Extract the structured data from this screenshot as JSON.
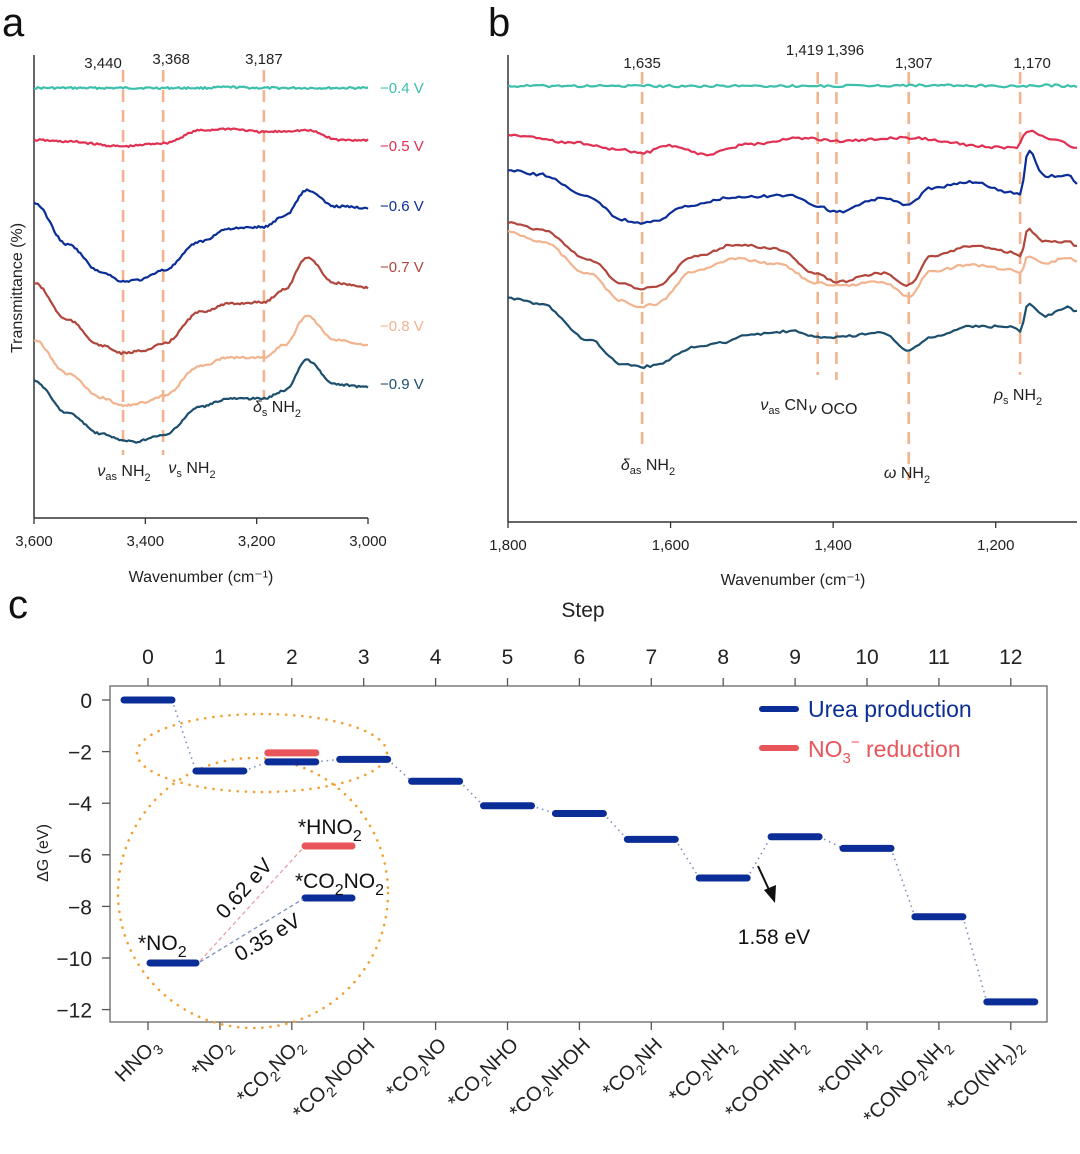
{
  "chart_data": [
    {
      "panel": "a",
      "type": "line",
      "title": "",
      "xlabel": "Wavenumber (cm⁻¹)",
      "ylabel": "Transmittance (%)",
      "xlim": [
        3600,
        3000
      ],
      "x_ticks": [
        "3,600",
        "3,400",
        "3,200",
        "3,000"
      ],
      "x_tick_values": [
        3600,
        3400,
        3200,
        3000
      ],
      "y_ticks": [],
      "grid": false,
      "reference_lines": [
        {
          "x": 3440,
          "label": "3,440"
        },
        {
          "x": 3368,
          "label": "3,368"
        },
        {
          "x": 3187,
          "label": "3,187"
        }
      ],
      "assignments": [
        {
          "x": 3440,
          "greek": "ν",
          "sub": "as",
          "group": "NH",
          "group_sub": "2"
        },
        {
          "x": 3368,
          "greek": "ν",
          "sub": "s",
          "group": "NH",
          "group_sub": "2"
        },
        {
          "x": 3187,
          "greek": "δ",
          "sub": "s",
          "group": "NH",
          "group_sub": "2"
        }
      ],
      "series": [
        {
          "name": "−0.4 V",
          "color": "#3dbfac",
          "x": [
            3600,
            3500,
            3440,
            3368,
            3300,
            3250,
            3187,
            3110,
            3050,
            3000
          ],
          "y": [
            0,
            0,
            0,
            0,
            0,
            0.05,
            0,
            0,
            0,
            0
          ]
        },
        {
          "name": "−0.5 V",
          "color": "#e03152",
          "x": [
            3600,
            3540,
            3440,
            3368,
            3300,
            3250,
            3187,
            3110,
            3050,
            3000
          ],
          "y": [
            0,
            -0.1,
            -0.4,
            -0.2,
            0.6,
            0.7,
            0.5,
            0.6,
            0.0,
            0.0
          ]
        },
        {
          "name": "−0.6 V",
          "color": "#0b2d97",
          "x": [
            3600,
            3540,
            3480,
            3440,
            3410,
            3368,
            3300,
            3250,
            3187,
            3150,
            3110,
            3060,
            3000
          ],
          "y": [
            0,
            -2.6,
            -4.3,
            -4.9,
            -4.8,
            -4.2,
            -2.4,
            -1.6,
            -1.5,
            -0.8,
            0.8,
            -0.2,
            -0.3
          ]
        },
        {
          "name": "−0.7 V",
          "color": "#b0463c",
          "x": [
            3600,
            3540,
            3480,
            3440,
            3400,
            3368,
            3300,
            3250,
            3187,
            3150,
            3110,
            3060,
            3000
          ],
          "y": [
            0,
            -2.3,
            -3.9,
            -4.4,
            -4.2,
            -3.8,
            -1.8,
            -1.3,
            -1.2,
            -0.4,
            1.6,
            0.0,
            -0.3
          ]
        },
        {
          "name": "−0.8 V",
          "color": "#f2b48e",
          "x": [
            3600,
            3540,
            3480,
            3440,
            3400,
            3368,
            3300,
            3250,
            3187,
            3150,
            3110,
            3060,
            3000
          ],
          "y": [
            0,
            -2.1,
            -3.6,
            -4.1,
            -3.9,
            -3.5,
            -1.6,
            -1.1,
            -1.1,
            -0.3,
            1.5,
            0.0,
            -0.3
          ]
        },
        {
          "name": "−0.9 V",
          "color": "#1c4f6d",
          "x": [
            3600,
            3540,
            3480,
            3440,
            3420,
            3368,
            3300,
            3250,
            3187,
            3150,
            3110,
            3060,
            3000
          ],
          "y": [
            0,
            -2.0,
            -3.3,
            -3.7,
            -3.8,
            -3.4,
            -1.6,
            -1.1,
            -1.1,
            -0.6,
            1.3,
            -0.2,
            -0.4
          ]
        }
      ]
    },
    {
      "panel": "b",
      "type": "line",
      "title": "",
      "xlabel": "Wavenumber (cm⁻¹)",
      "ylabel": "",
      "xlim": [
        1800,
        1100
      ],
      "x_ticks": [
        "1,800",
        "1,600",
        "1,400",
        "1,200"
      ],
      "x_tick_values": [
        1800,
        1600,
        1400,
        1200
      ],
      "grid": false,
      "reference_lines": [
        {
          "x": 1635,
          "label": "1,635"
        },
        {
          "x": 1419,
          "label": "1,419"
        },
        {
          "x": 1396,
          "label": "1,396"
        },
        {
          "x": 1307,
          "label": "1,307"
        },
        {
          "x": 1170,
          "label": "1,170"
        }
      ],
      "assignments": [
        {
          "x": 1635,
          "greek": "δ",
          "sub": "as",
          "group": "NH",
          "group_sub": "2"
        },
        {
          "x": 1419,
          "greek": "ν",
          "sub": "as",
          "group": "CN",
          "group_sub": ""
        },
        {
          "x": 1396,
          "greek": "ν",
          "sub": "",
          "group": "OCO",
          "group_sub": ""
        },
        {
          "x": 1307,
          "greek": "ω",
          "sub": "",
          "group": "NH",
          "group_sub": "2"
        },
        {
          "x": 1170,
          "greek": "ρ",
          "sub": "s",
          "group": "NH",
          "group_sub": "2"
        }
      ],
      "series": [
        {
          "name": "−0.4 V",
          "color": "#3dbfac",
          "x": [
            1800,
            1700,
            1635,
            1550,
            1450,
            1396,
            1307,
            1200,
            1170,
            1150,
            1100
          ],
          "y": [
            0,
            0,
            0,
            0,
            0,
            0,
            0.05,
            0,
            -0.05,
            0.05,
            0
          ]
        },
        {
          "name": "−0.5 V",
          "color": "#e03152",
          "x": [
            1800,
            1720,
            1660,
            1635,
            1600,
            1560,
            1500,
            1440,
            1396,
            1307,
            1200,
            1175,
            1160,
            1130,
            1100
          ],
          "y": [
            0,
            -0.5,
            -1.0,
            -1.2,
            -0.7,
            -1.3,
            -0.6,
            -0.2,
            -0.4,
            -0.2,
            -0.8,
            -0.9,
            0.3,
            -0.3,
            -0.8
          ]
        },
        {
          "name": "−0.6 V",
          "color": "#0b2d97",
          "x": [
            1800,
            1760,
            1700,
            1660,
            1635,
            1620,
            1580,
            1520,
            1450,
            1419,
            1396,
            1340,
            1307,
            1280,
            1230,
            1180,
            1170,
            1160,
            1140,
            1110,
            1100
          ],
          "y": [
            0,
            -0.3,
            -1.8,
            -3.3,
            -3.6,
            -3.4,
            -2.4,
            -1.8,
            -1.7,
            -2.4,
            -2.8,
            -1.9,
            -2.3,
            -1.2,
            -0.8,
            -1.5,
            -1.6,
            1.3,
            -0.4,
            -0.4,
            -0.9
          ]
        },
        {
          "name": "−0.7 V",
          "color": "#b0463c",
          "x": [
            1800,
            1760,
            1700,
            1660,
            1635,
            1620,
            1570,
            1520,
            1470,
            1419,
            1396,
            1340,
            1307,
            1280,
            1230,
            1180,
            1170,
            1160,
            1140,
            1110,
            1100
          ],
          "y": [
            0,
            -0.5,
            -2.5,
            -4.1,
            -4.5,
            -4.3,
            -2.3,
            -1.5,
            -1.8,
            -3.5,
            -4.0,
            -3.4,
            -4.2,
            -2.3,
            -1.6,
            -2.0,
            -2.3,
            -0.5,
            -1.3,
            -1.3,
            -1.6
          ]
        },
        {
          "name": "−0.8 V",
          "color": "#f2b48e",
          "x": [
            1800,
            1760,
            1700,
            1660,
            1635,
            1620,
            1570,
            1520,
            1470,
            1419,
            1396,
            1340,
            1307,
            1280,
            1230,
            1180,
            1170,
            1160,
            1140,
            1110,
            1100
          ],
          "y": [
            0,
            -0.6,
            -2.8,
            -4.6,
            -5.0,
            -4.8,
            -2.6,
            -1.8,
            -2.1,
            -3.4,
            -3.6,
            -3.3,
            -4.3,
            -2.6,
            -2.2,
            -2.5,
            -2.8,
            -1.6,
            -2.1,
            -1.7,
            -2.0
          ]
        },
        {
          "name": "−0.9 V",
          "color": "#1c4f6d",
          "x": [
            1800,
            1760,
            1700,
            1660,
            1635,
            1620,
            1570,
            1540,
            1500,
            1450,
            1419,
            1396,
            1340,
            1307,
            1280,
            1230,
            1180,
            1170,
            1160,
            1140,
            1110,
            1100
          ],
          "y": [
            0,
            -0.4,
            -2.8,
            -4.4,
            -4.6,
            -4.5,
            -3.3,
            -3.0,
            -2.4,
            -2.2,
            -2.6,
            -2.6,
            -2.3,
            -3.5,
            -2.6,
            -1.9,
            -1.9,
            -2.2,
            -0.4,
            -1.2,
            -0.6,
            -0.9
          ]
        }
      ]
    },
    {
      "panel": "c",
      "type": "line",
      "subtype": "energy-level-diagram",
      "title": "",
      "xlabel_top": "Step",
      "ylabel": "ΔG (eV)",
      "ylim": [
        -12.5,
        0.5
      ],
      "xlim": [
        -0.5,
        12.5
      ],
      "y_ticks": [
        0,
        -2,
        -4,
        -6,
        -8,
        -10,
        -12
      ],
      "y_tick_labels": [
        "0",
        "−2",
        "−4",
        "−6",
        "−8",
        "−10",
        "−12"
      ],
      "x_ticks": [
        0,
        1,
        2,
        3,
        4,
        5,
        6,
        7,
        8,
        9,
        10,
        11,
        12
      ],
      "x_tick_labels": [
        "0",
        "1",
        "2",
        "3",
        "4",
        "5",
        "6",
        "7",
        "8",
        "9",
        "10",
        "11",
        "12"
      ],
      "grid": false,
      "legend": "top-right",
      "series": [
        {
          "name": "Urea production",
          "name_html": "Urea production",
          "color": "#0b2d97",
          "x": [
            0,
            1,
            2,
            3,
            4,
            5,
            6,
            7,
            8,
            9,
            10,
            11,
            12
          ],
          "y": [
            0,
            -2.75,
            -2.4,
            -2.3,
            -3.15,
            -4.1,
            -4.4,
            -5.4,
            -6.9,
            -5.3,
            -5.75,
            -8.4,
            -11.7
          ]
        },
        {
          "name": "NO3⁻ reduction",
          "color": "#e8555a",
          "x": [
            2
          ],
          "y": [
            -2.05
          ]
        }
      ],
      "species": [
        {
          "main": "HNO",
          "parts": [
            [
              "HNO",
              ""
            ],
            [
              "3",
              "sub"
            ]
          ]
        },
        {
          "parts": [
            [
              "*NO",
              ""
            ],
            [
              "2",
              "sub"
            ]
          ]
        },
        {
          "parts": [
            [
              "*CO",
              ""
            ],
            [
              "2",
              "sub"
            ],
            [
              "NO",
              ""
            ],
            [
              "2",
              "sub"
            ]
          ]
        },
        {
          "parts": [
            [
              "*CO",
              ""
            ],
            [
              "2",
              "sub"
            ],
            [
              "NOOH",
              ""
            ]
          ]
        },
        {
          "parts": [
            [
              "*CO",
              ""
            ],
            [
              "2",
              "sub"
            ],
            [
              "NO",
              ""
            ]
          ]
        },
        {
          "parts": [
            [
              "*CO",
              ""
            ],
            [
              "2",
              "sub"
            ],
            [
              "NHO",
              ""
            ]
          ]
        },
        {
          "parts": [
            [
              "*CO",
              ""
            ],
            [
              "2",
              "sub"
            ],
            [
              "NHOH",
              ""
            ]
          ]
        },
        {
          "parts": [
            [
              "*CO",
              ""
            ],
            [
              "2",
              "sub"
            ],
            [
              "NH",
              ""
            ]
          ]
        },
        {
          "parts": [
            [
              "*CO",
              ""
            ],
            [
              "2",
              "sub"
            ],
            [
              "NH",
              ""
            ],
            [
              "2",
              "sub"
            ]
          ]
        },
        {
          "parts": [
            [
              "*COOHNH",
              ""
            ],
            [
              "2",
              "sub"
            ]
          ]
        },
        {
          "parts": [
            [
              "*CONH",
              ""
            ],
            [
              "2",
              "sub"
            ]
          ]
        },
        {
          "parts": [
            [
              "*CONO",
              ""
            ],
            [
              "2",
              "sub"
            ],
            [
              "NH",
              ""
            ],
            [
              "2",
              "sub"
            ]
          ]
        },
        {
          "parts": [
            [
              "*CO(NH",
              ""
            ],
            [
              "2",
              "sub"
            ],
            [
              ")",
              ""
            ],
            [
              "2",
              "sub"
            ]
          ]
        }
      ],
      "annotations": {
        "barrier": "1.58 eV",
        "inset": {
          "no2_label": "*NO",
          "hno2_label": "*HNO",
          "co2no2_label_a": "*CO",
          "co2no2_label_b": "NO",
          "sub2": "2",
          "barrier_hno2": "0.62 eV",
          "barrier_co2no2": "0.35 eV"
        }
      }
    }
  ],
  "panels": {
    "a": {
      "letter": "a"
    },
    "b": {
      "letter": "b"
    },
    "c": {
      "letter": "c"
    }
  },
  "ref_line_color": "#f2b48e",
  "inset_ring_color": "#f0a030"
}
